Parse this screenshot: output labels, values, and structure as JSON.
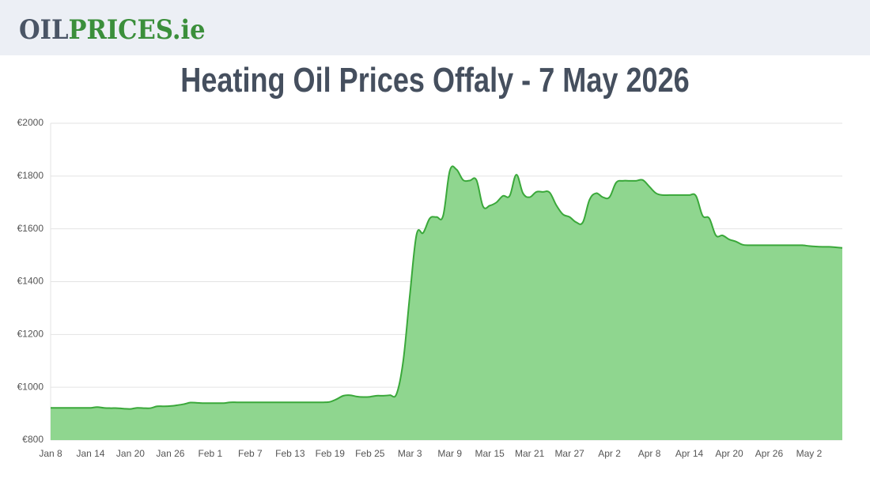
{
  "header": {
    "logo": [
      "OIL",
      "PRICES.ie"
    ]
  },
  "chart_data": {
    "type": "area",
    "title": "Heating Oil Prices Offaly - 7 May 2026",
    "categories": [
      "Jan 8",
      null,
      null,
      null,
      null,
      null,
      "Jan 14",
      null,
      null,
      null,
      null,
      null,
      "Jan 20",
      null,
      null,
      null,
      null,
      null,
      "Jan 26",
      null,
      null,
      null,
      null,
      null,
      "Feb 1",
      null,
      null,
      null,
      null,
      null,
      "Feb 7",
      null,
      null,
      null,
      null,
      null,
      "Feb 13",
      null,
      null,
      null,
      null,
      null,
      "Feb 19",
      null,
      null,
      null,
      null,
      null,
      "Feb 25",
      null,
      null,
      null,
      null,
      null,
      "Mar 3",
      null,
      null,
      null,
      null,
      null,
      "Mar 9",
      null,
      null,
      null,
      null,
      null,
      "Mar 15",
      null,
      null,
      null,
      null,
      null,
      "Mar 21",
      null,
      null,
      null,
      null,
      null,
      "Mar 27",
      null,
      null,
      null,
      null,
      null,
      "Apr 2",
      null,
      null,
      null,
      null,
      null,
      "Apr 8",
      null,
      null,
      null,
      null,
      null,
      "Apr 14",
      null,
      null,
      null,
      null,
      null,
      "Apr 20",
      null,
      null,
      null,
      null,
      null,
      "Apr 26",
      null,
      null,
      null,
      null,
      null,
      "May 2",
      null,
      null,
      null,
      null,
      null
    ],
    "values": [
      922,
      922,
      922,
      922,
      922,
      922,
      922,
      925,
      922,
      921,
      921,
      919,
      918,
      922,
      921,
      921,
      928,
      928,
      929,
      932,
      936,
      942,
      941,
      940,
      940,
      940,
      940,
      943,
      943,
      943,
      943,
      943,
      943,
      943,
      943,
      943,
      943,
      943,
      943,
      943,
      943,
      943,
      945,
      955,
      968,
      970,
      965,
      963,
      964,
      968,
      968,
      970,
      975,
      1100,
      1350,
      1578,
      1585,
      1640,
      1645,
      1650,
      1820,
      1825,
      1785,
      1783,
      1785,
      1685,
      1688,
      1700,
      1725,
      1725,
      1805,
      1735,
      1720,
      1740,
      1740,
      1738,
      1690,
      1655,
      1645,
      1625,
      1625,
      1710,
      1735,
      1720,
      1720,
      1775,
      1782,
      1782,
      1782,
      1785,
      1760,
      1735,
      1728,
      1728,
      1728,
      1728,
      1728,
      1725,
      1650,
      1640,
      1575,
      1575,
      1560,
      1552,
      1540,
      1538,
      1538,
      1538,
      1538,
      1538,
      1538,
      1538,
      1538,
      1538,
      1535,
      1533,
      1532,
      1532,
      1530,
      1528
    ],
    "color": "#3aa83a",
    "area_color": "#8fd68f",
    "ylim": [
      800,
      2000
    ],
    "yticks": [
      {
        "value": 800,
        "label": "€800"
      },
      {
        "value": 1000,
        "label": "€1000"
      },
      {
        "value": 1200,
        "label": "€1200"
      },
      {
        "value": 1400,
        "label": "€1400"
      },
      {
        "value": 1600,
        "label": "€1600"
      },
      {
        "value": 1800,
        "label": "€1800"
      },
      {
        "value": 2000,
        "label": "€2000"
      }
    ],
    "grid": true
  }
}
